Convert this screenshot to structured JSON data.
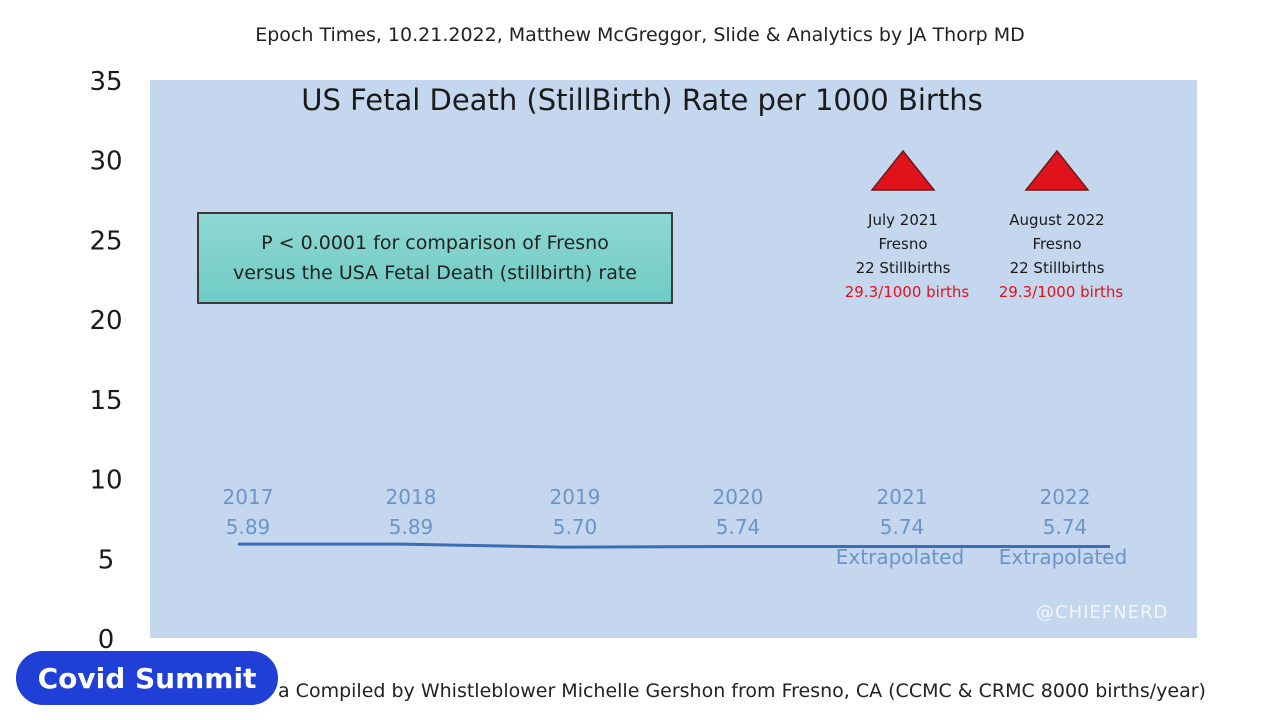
{
  "header": {
    "caption": "Epoch Times,  10.21.2022, Matthew McGreggor, Slide & Analytics by  JA Thorp MD"
  },
  "footer": {
    "caption": "a Compiled by Whistleblower Michelle Gershon from Fresno, CA (CCMC & CRMC 8000 births/year)"
  },
  "stat_box": {
    "line1": "P < 0.0001 for comparison of Fresno",
    "line2": "versus the USA Fetal Death (stillbirth) rate"
  },
  "badge": {
    "label": "Covid Summit"
  },
  "watermark": {
    "text": "@CHIEFNERD"
  },
  "colors": {
    "plot_bg": "#c5d7ee",
    "line": "#3b6cb5",
    "point_label": "#6b94c9",
    "triangle": "#e0121b",
    "rate_text": "#e0121b",
    "box_bg": "#7dd1ca",
    "badge_bg": "#1f3fd6"
  },
  "chart_data": {
    "type": "line",
    "title": "US Fetal Death (StillBirth) Rate per 1000 Births",
    "ylim": [
      0,
      35
    ],
    "yticks": [
      0,
      5,
      10,
      15,
      20,
      25,
      30,
      35
    ],
    "series": [
      {
        "x": [
          "2017",
          "2018",
          "2019",
          "2020",
          "2021",
          "2022"
        ],
        "values": [
          5.89,
          5.89,
          5.7,
          5.74,
          5.74,
          5.74
        ],
        "labels": [
          "5.89",
          "5.89",
          "5.70",
          "5.74",
          "5.74",
          "5.74"
        ],
        "notes": [
          "",
          "",
          "",
          "",
          "Extrapolated",
          "Extrapolated"
        ]
      }
    ],
    "annotations": [
      {
        "marker": "triangle",
        "x": "2021",
        "value": 29.3,
        "lines": [
          "July 2021",
          "Fresno",
          "22 Stillbirths"
        ],
        "rate": "29.3/1000 births"
      },
      {
        "marker": "triangle",
        "x": "2022",
        "value": 29.3,
        "lines": [
          "August 2022",
          "Fresno",
          "22 Stillbirths"
        ],
        "rate": "29.3/1000 births"
      }
    ]
  }
}
